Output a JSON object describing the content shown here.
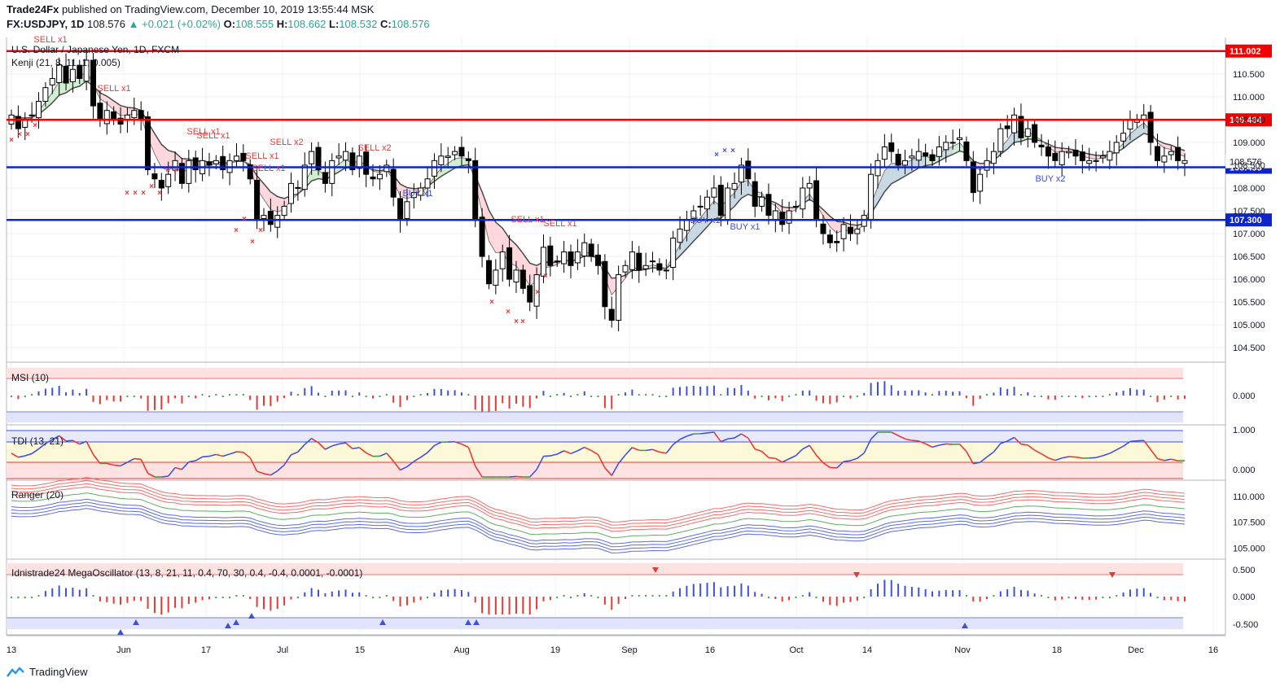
{
  "header": {
    "publisher": "Trade24Fx",
    "published_text": "published on TradingView.com, December 10, 2019 13:55:44 MSK",
    "symbol": "FX:USDJPY, 1D",
    "last": "108.576",
    "change": "+0.021 (+0.02%)",
    "o_label": "O:",
    "o": "108.555",
    "h_label": "H:",
    "h": "108.662",
    "l_label": "L:",
    "l": "108.532",
    "c_label": "C:",
    "c": "108.576"
  },
  "main_pane": {
    "title": "U.S. Dollar / Japanese Yen, 1D, FXCM",
    "indicator": "Kenji (21, 8, 11, 1, 0.005)"
  },
  "msi_pane": {
    "title": "MSI (10)",
    "ticks": [
      "0.000"
    ]
  },
  "tdi_pane": {
    "title": "TDI (13, 21)",
    "ticks": [
      "1.000",
      "0.000"
    ]
  },
  "ranger_pane": {
    "title": "Ranger (20)",
    "ticks": [
      "110.000",
      "107.500",
      "105.000"
    ]
  },
  "mega_pane": {
    "title": "Idnistrade24 MegaOscillator (13, 8, 21, 11, 0.4, 70, 30, 0.4, -0.4, 0.0001, -0.0001)",
    "ticks": [
      "0.500",
      "0.000",
      "-0.500"
    ]
  },
  "footer": {
    "brand": "TradingView"
  },
  "colors": {
    "up": "#ffffff",
    "down": "#000000",
    "red_line": "#f00000",
    "blue_line": "#0d24c8",
    "sell": "#e53935",
    "buy": "#3f51d9"
  },
  "chart_data": {
    "type": "candlestick",
    "title": "U.S. Dollar / Japanese Yen, 1D, FXCM",
    "y_ticks": [
      "110.500",
      "110.000",
      "109.500",
      "109.000",
      "108.500",
      "108.000",
      "107.500",
      "107.000",
      "106.500",
      "106.000",
      "105.500",
      "105.000",
      "104.500"
    ],
    "ylim": [
      104.2,
      111.3
    ],
    "x_ticks": [
      "13",
      "Jun",
      "17",
      "Jul",
      "15",
      "Aug",
      "19",
      "Sep",
      "16",
      "Oct",
      "14",
      "Nov",
      "18",
      "Dec",
      "16"
    ],
    "horizontal_levels": [
      {
        "value": 111.002,
        "label": "111.002",
        "color": "red"
      },
      {
        "value": 109.494,
        "label": "109.494",
        "color": "red"
      },
      {
        "value": 108.455,
        "label": "108.455",
        "color": "blue"
      },
      {
        "value": 107.3,
        "label": "107.300",
        "color": "blue"
      }
    ],
    "last_price_label": "108.576",
    "closes": [
      109.6,
      109.3,
      109.5,
      109.6,
      109.9,
      110.2,
      110.4,
      110.7,
      110.3,
      110.6,
      110.4,
      110.8,
      109.8,
      109.5,
      109.7,
      109.5,
      109.4,
      109.6,
      109.7,
      109.5,
      108.4,
      108.2,
      108.0,
      108.3,
      108.6,
      108.1,
      108.6,
      108.4,
      108.6,
      108.5,
      108.6,
      108.4,
      108.6,
      108.7,
      108.6,
      108.2,
      107.3,
      107.4,
      107.2,
      107.4,
      107.6,
      108.1,
      108.0,
      108.5,
      108.8,
      108.4,
      108.1,
      108.6,
      108.7,
      108.8,
      108.4,
      108.7,
      108.3,
      108.2,
      108.3,
      108.5,
      107.8,
      107.3,
      107.7,
      107.9,
      108.0,
      108.2,
      108.6,
      108.7,
      108.7,
      108.8,
      108.7,
      108.6,
      107.3,
      106.5,
      105.9,
      106.2,
      106.6,
      106.0,
      106.2,
      105.8,
      105.5,
      106.1,
      106.7,
      106.3,
      106.4,
      106.6,
      106.3,
      106.6,
      106.8,
      106.5,
      106.3,
      105.4,
      105.1,
      106.1,
      106.3,
      106.6,
      106.2,
      106.3,
      106.4,
      106.2,
      106.2,
      106.9,
      107.1,
      107.3,
      107.5,
      107.6,
      107.8,
      108.0,
      107.4,
      108.0,
      108.1,
      108.5,
      108.2,
      107.6,
      107.8,
      107.4,
      107.5,
      107.2,
      107.5,
      107.6,
      108.0,
      108.1,
      107.3,
      107.0,
      106.8,
      106.8,
      107.2,
      107.0,
      107.1,
      107.4,
      108.3,
      108.6,
      108.9,
      108.8,
      108.5,
      108.6,
      108.7,
      108.8,
      108.7,
      108.6,
      108.9,
      109.0,
      109.0,
      109.1,
      108.6,
      107.9,
      108.3,
      108.6,
      108.8,
      109.3,
      109.3,
      109.6,
      109.1,
      109.3,
      109.0,
      108.9,
      108.7,
      108.6,
      108.8,
      108.8,
      108.7,
      108.6,
      108.6,
      108.6,
      108.7,
      108.8,
      109.0,
      109.2,
      109.5,
      109.5,
      109.6,
      109.0,
      108.6,
      108.7,
      108.8,
      108.6,
      108.6
    ],
    "signals": [
      {
        "text": "SELL x1",
        "type": "sell"
      },
      {
        "text": "SELL x1",
        "type": "sell"
      },
      {
        "text": "SELL x1",
        "type": "sell"
      },
      {
        "text": "SELL x1",
        "type": "sell"
      },
      {
        "text": "SELL x2",
        "type": "sell"
      },
      {
        "text": "SELL x1",
        "type": "sell"
      },
      {
        "text": "SELL x2",
        "type": "sell"
      },
      {
        "text": "SELL x1",
        "type": "sell"
      },
      {
        "text": "SELL x1",
        "type": "sell"
      },
      {
        "text": "SELL x1",
        "type": "sell"
      },
      {
        "text": "BUY x1",
        "type": "buy"
      },
      {
        "text": "BUY x1",
        "type": "buy"
      },
      {
        "text": "BUY x1",
        "type": "buy"
      },
      {
        "text": "BUY x2",
        "type": "buy"
      }
    ]
  }
}
